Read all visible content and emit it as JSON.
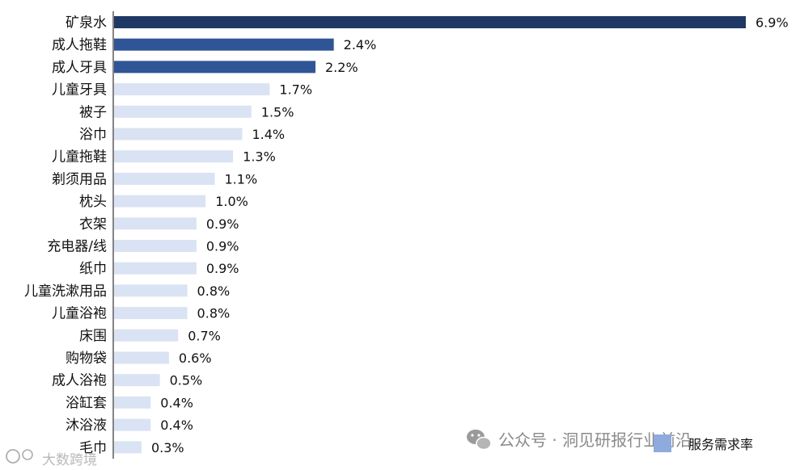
{
  "chart_data": {
    "type": "bar",
    "orientation": "horizontal",
    "categories": [
      "矿泉水",
      "成人拖鞋",
      "成人牙具",
      "儿童牙具",
      "被子",
      "浴巾",
      "儿童拖鞋",
      "剃须用品",
      "枕头",
      "衣架",
      "充电器/线",
      "纸巾",
      "儿童洗漱用品",
      "儿童浴袍",
      "床围",
      "购物袋",
      "成人浴袍",
      "浴缸套",
      "沐浴液",
      "毛巾"
    ],
    "values": [
      6.9,
      2.4,
      2.2,
      1.7,
      1.5,
      1.4,
      1.3,
      1.1,
      1.0,
      0.9,
      0.9,
      0.9,
      0.8,
      0.8,
      0.7,
      0.6,
      0.5,
      0.4,
      0.4,
      0.3
    ],
    "value_labels": [
      "6.9%",
      "2.4%",
      "2.2%",
      "1.7%",
      "1.5%",
      "1.4%",
      "1.3%",
      "1.1%",
      "1.0%",
      "0.9%",
      "0.9%",
      "0.9%",
      "0.8%",
      "0.8%",
      "0.7%",
      "0.6%",
      "0.5%",
      "0.4%",
      "0.4%",
      "0.3%"
    ],
    "series": [
      {
        "name": "服务需求率"
      }
    ],
    "xlim": [
      0,
      6.9
    ],
    "grid": false,
    "legend": "bottom-right",
    "colors": {
      "top": "#1f3864",
      "mid": "#2f5597",
      "rest": "#dae3f3",
      "legend_swatch": "#8faadc",
      "axis": "#333333"
    }
  },
  "watermark": {
    "right": "公众号 · 洞见研报行业前沿",
    "left": "大数跨境"
  }
}
